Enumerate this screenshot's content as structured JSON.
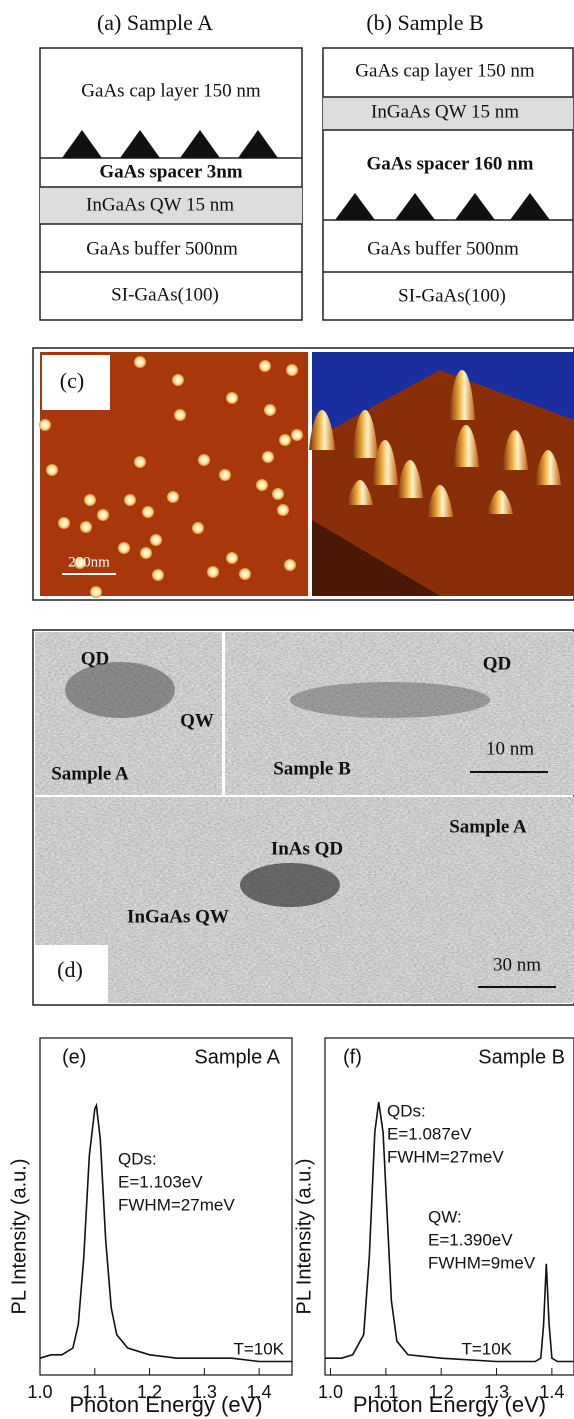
{
  "panel_a": {
    "title": "(a) Sample A",
    "layers": [
      "GaAs cap layer 150 nm",
      "GaAs spacer 3nm",
      "InGaAs QW 15 nm",
      "GaAs buffer 500nm",
      "SI-GaAs(100)"
    ]
  },
  "panel_b": {
    "title": "(b) Sample B",
    "layers": [
      "GaAs cap layer 150 nm",
      "InGaAs QW 15 nm",
      "GaAs spacer 160 nm",
      "GaAs buffer 500nm",
      "SI-GaAs(100)"
    ]
  },
  "panel_c": {
    "label": "(c)",
    "scale": "200nm"
  },
  "panel_d": {
    "label": "(d)",
    "texts": [
      "QD",
      "QW",
      "Sample A",
      "QD",
      "10 nm",
      "Sample B",
      "Sample A",
      "InAs QD",
      "InGaAs QW",
      "30 nm"
    ]
  },
  "chart_data": [
    {
      "type": "line",
      "x_label": "Photon Energy (eV)",
      "y_label": "PL Intensity (a.u.)",
      "annotations": [
        "(e)",
        "Sample A",
        "QDs:",
        "E=1.103eV",
        "FWHM=27meV",
        "T=10K"
      ],
      "xlim": [
        1.0,
        1.46
      ],
      "ylim": [
        0,
        1
      ],
      "xticks": [
        {
          "value": 1.0,
          "label": "1.0"
        },
        1.1,
        1.2,
        1.3,
        1.4
      ],
      "color": "#111111",
      "x": [
        1.0,
        1.02,
        1.04,
        1.06,
        1.07,
        1.08,
        1.09,
        1.1,
        1.103,
        1.11,
        1.12,
        1.13,
        1.14,
        1.16,
        1.2,
        1.25,
        1.3,
        1.35,
        1.4,
        1.46
      ],
      "values": [
        0.05,
        0.06,
        0.06,
        0.08,
        0.15,
        0.35,
        0.65,
        0.79,
        0.8,
        0.7,
        0.4,
        0.2,
        0.12,
        0.08,
        0.06,
        0.05,
        0.05,
        0.05,
        0.04,
        0.04
      ]
    },
    {
      "type": "line",
      "x_label": "Photon Energy (eV)",
      "y_label": "PL Intensity (a.u.)",
      "annotations": [
        "(f)",
        "Sample B",
        "QDs:",
        "E=1.087eV",
        "FWHM=27meV",
        "QW:",
        "E=1.390eV",
        "FWHM=9meV",
        "T=10K"
      ],
      "xlim": [
        0.99,
        1.44
      ],
      "ylim": [
        0,
        1
      ],
      "xticks": [
        {
          "value": 1.0,
          "label": "1.0"
        },
        1.1,
        1.2,
        1.3,
        1.4
      ],
      "color": "#111111",
      "x": [
        0.99,
        1.02,
        1.04,
        1.06,
        1.07,
        1.08,
        1.087,
        1.095,
        1.1,
        1.11,
        1.12,
        1.14,
        1.2,
        1.3,
        1.37,
        1.38,
        1.385,
        1.39,
        1.395,
        1.4,
        1.41,
        1.44
      ],
      "values": [
        0.05,
        0.05,
        0.06,
        0.12,
        0.35,
        0.72,
        0.81,
        0.72,
        0.55,
        0.22,
        0.1,
        0.06,
        0.05,
        0.04,
        0.04,
        0.05,
        0.15,
        0.33,
        0.15,
        0.05,
        0.04,
        0.04
      ]
    }
  ]
}
